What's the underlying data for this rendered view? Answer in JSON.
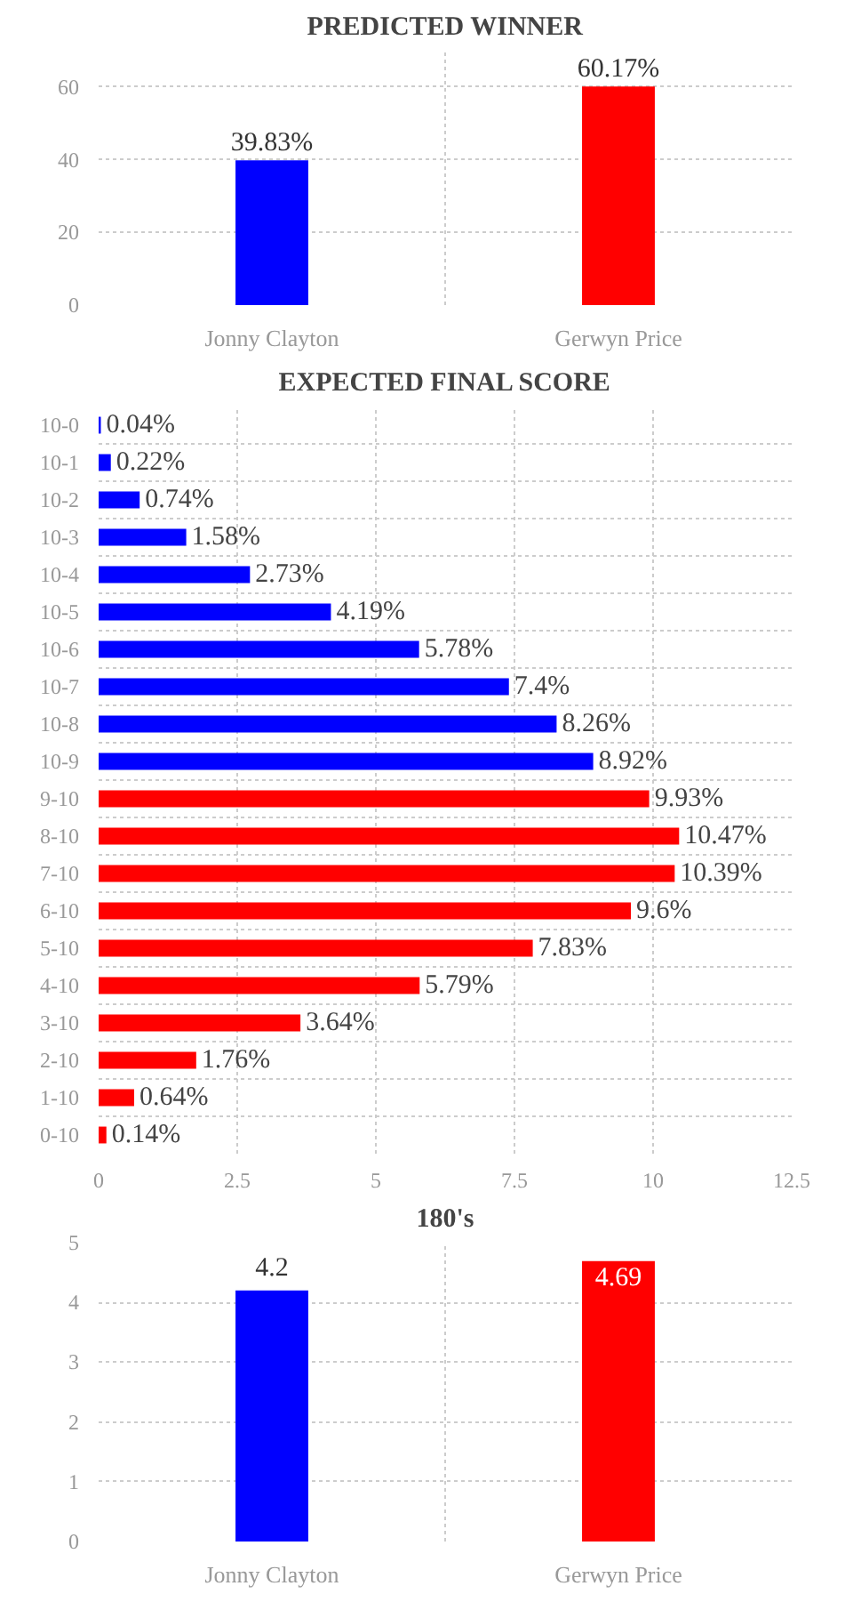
{
  "chart_data": [
    {
      "type": "bar",
      "title": "PREDICTED WINNER",
      "categories": [
        "Jonny Clayton",
        "Gerwyn Price"
      ],
      "values": [
        39.83,
        60.17
      ],
      "colors": [
        "#0000ff",
        "#ff0000"
      ],
      "value_labels": [
        "39.83%",
        "60.17%"
      ],
      "ylim": [
        0,
        70
      ],
      "yticks": [
        0,
        20,
        40,
        60
      ],
      "grid": true
    },
    {
      "type": "bar",
      "title": "EXPECTED FINAL SCORE",
      "orientation": "horizontal",
      "categories": [
        "10-0",
        "10-1",
        "10-2",
        "10-3",
        "10-4",
        "10-5",
        "10-6",
        "10-7",
        "10-8",
        "10-9",
        "9-10",
        "8-10",
        "7-10",
        "6-10",
        "5-10",
        "4-10",
        "3-10",
        "2-10",
        "1-10",
        "0-10"
      ],
      "values": [
        0.04,
        0.22,
        0.74,
        1.58,
        2.73,
        4.19,
        5.78,
        7.4,
        8.26,
        8.92,
        9.93,
        10.47,
        10.39,
        9.6,
        7.83,
        5.79,
        3.64,
        1.76,
        0.64,
        0.14
      ],
      "colors": [
        "#0000ff",
        "#0000ff",
        "#0000ff",
        "#0000ff",
        "#0000ff",
        "#0000ff",
        "#0000ff",
        "#0000ff",
        "#0000ff",
        "#0000ff",
        "#ff0000",
        "#ff0000",
        "#ff0000",
        "#ff0000",
        "#ff0000",
        "#ff0000",
        "#ff0000",
        "#ff0000",
        "#ff0000",
        "#ff0000"
      ],
      "value_labels": [
        "0.04%",
        "0.22%",
        "0.74%",
        "1.58%",
        "2.73%",
        "4.19%",
        "5.78%",
        "7.4%",
        "8.26%",
        "8.92%",
        "9.93%",
        "10.47%",
        "10.39%",
        "9.6%",
        "7.83%",
        "5.79%",
        "3.64%",
        "1.76%",
        "0.64%",
        "0.14%"
      ],
      "xlim": [
        0,
        12.5
      ],
      "xticks": [
        0,
        2.5,
        5,
        7.5,
        10,
        12.5
      ],
      "grid": true
    },
    {
      "type": "bar",
      "title": "180's",
      "categories": [
        "Jonny Clayton",
        "Gerwyn Price"
      ],
      "values": [
        4.2,
        4.69
      ],
      "colors": [
        "#0000ff",
        "#ff0000"
      ],
      "data_labels": true,
      "ylim": [
        0,
        5
      ],
      "yticks": [
        0,
        1,
        2,
        3,
        4,
        5
      ],
      "grid": true
    }
  ]
}
